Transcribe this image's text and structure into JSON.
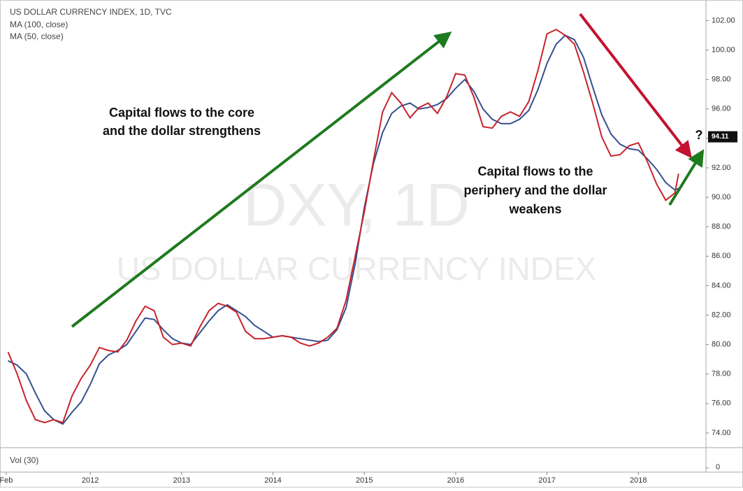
{
  "chart_data": {
    "type": "line",
    "title": "US DOLLAR CURRENCY INDEX, 1D, TVC",
    "watermark": [
      "DXY, 1D",
      "US DOLLAR CURRENCY INDEX"
    ],
    "x": [
      2011.1,
      2011.2,
      2011.3,
      2011.4,
      2011.5,
      2011.6,
      2011.7,
      2011.8,
      2011.9,
      2012.0,
      2012.1,
      2012.2,
      2012.3,
      2012.4,
      2012.5,
      2012.6,
      2012.7,
      2012.8,
      2012.9,
      2013.0,
      2013.1,
      2013.2,
      2013.3,
      2013.4,
      2013.5,
      2013.6,
      2013.7,
      2013.8,
      2013.9,
      2014.0,
      2014.1,
      2014.2,
      2014.3,
      2014.4,
      2014.5,
      2014.6,
      2014.7,
      2014.8,
      2014.9,
      2015.0,
      2015.1,
      2015.2,
      2015.3,
      2015.4,
      2015.5,
      2015.6,
      2015.7,
      2015.8,
      2015.9,
      2016.0,
      2016.1,
      2016.2,
      2016.3,
      2016.4,
      2016.5,
      2016.6,
      2016.7,
      2016.8,
      2016.9,
      2017.0,
      2017.1,
      2017.2,
      2017.3,
      2017.4,
      2017.5,
      2017.6,
      2017.7,
      2017.8,
      2017.9,
      2018.0,
      2018.1,
      2018.2,
      2018.3,
      2018.4,
      2018.44
    ],
    "series": [
      {
        "name": "MA (100, close)",
        "color": "#34508f",
        "values": [
          78.9,
          78.6,
          78.0,
          76.7,
          75.5,
          74.9,
          74.6,
          75.4,
          76.1,
          77.3,
          78.7,
          79.3,
          79.6,
          80.0,
          80.9,
          81.8,
          81.7,
          81.0,
          80.4,
          80.1,
          80.0,
          80.8,
          81.6,
          82.3,
          82.7,
          82.3,
          81.9,
          81.3,
          80.9,
          80.5,
          80.6,
          80.5,
          80.4,
          80.3,
          80.2,
          80.3,
          81.0,
          82.5,
          85.5,
          89.3,
          92.3,
          94.4,
          95.7,
          96.2,
          96.4,
          96.0,
          96.1,
          96.3,
          96.7,
          97.4,
          98.0,
          97.2,
          96.0,
          95.3,
          95.0,
          95.0,
          95.3,
          95.9,
          97.3,
          99.1,
          100.4,
          101.0,
          100.7,
          99.5,
          97.5,
          95.6,
          94.3,
          93.6,
          93.3,
          93.2,
          92.6,
          91.9,
          91.0,
          90.5,
          90.6
        ]
      },
      {
        "name": "MA (50, close)",
        "color": "#c8232c",
        "values": [
          79.5,
          78.0,
          76.2,
          74.9,
          74.7,
          74.9,
          74.7,
          76.5,
          77.7,
          78.6,
          79.8,
          79.6,
          79.5,
          80.3,
          81.6,
          82.6,
          82.3,
          80.5,
          80.0,
          80.1,
          79.9,
          81.2,
          82.3,
          82.8,
          82.6,
          82.2,
          80.9,
          80.4,
          80.4,
          80.5,
          80.6,
          80.5,
          80.1,
          79.9,
          80.1,
          80.5,
          81.1,
          83.0,
          86.0,
          89.0,
          92.5,
          95.8,
          97.1,
          96.4,
          95.4,
          96.1,
          96.4,
          95.7,
          96.8,
          98.4,
          98.3,
          96.8,
          94.8,
          94.7,
          95.5,
          95.8,
          95.5,
          96.5,
          98.6,
          101.1,
          101.4,
          101.0,
          100.4,
          98.5,
          96.4,
          94.1,
          92.8,
          92.9,
          93.5,
          93.7,
          92.4,
          90.9,
          89.8,
          90.3,
          91.6
        ]
      }
    ],
    "xlim": [
      2011.05,
      2018.74
    ],
    "xticks": [
      {
        "value": 2011.08,
        "label": "Feb"
      },
      2012,
      2013,
      2014,
      2015,
      2016,
      2017,
      2018
    ],
    "ylim": [
      73.0,
      103.4
    ],
    "yticks": [
      {
        "value": 74,
        "label": "74.00"
      },
      {
        "value": 76,
        "label": "76.00"
      },
      {
        "value": 78,
        "label": "78.00"
      },
      {
        "value": 80,
        "label": "80.00"
      },
      {
        "value": 82,
        "label": "82.00"
      },
      {
        "value": 84,
        "label": "84.00"
      },
      {
        "value": 86,
        "label": "86.00"
      },
      {
        "value": 88,
        "label": "88.00"
      },
      {
        "value": 90,
        "label": "90.00"
      },
      {
        "value": 92,
        "label": "92.00"
      },
      {
        "value": 94,
        "label": "94.00"
      },
      {
        "value": 96,
        "label": "96.00"
      },
      {
        "value": 98,
        "label": "98.00"
      },
      {
        "value": 100,
        "label": "100.00"
      },
      {
        "value": 102,
        "label": "102.00"
      }
    ],
    "last_price": 94.11,
    "grid": false,
    "annotations": [
      {
        "lines": [
          "Capital flows to the core",
          "and the dollar strengthens"
        ]
      },
      {
        "lines": [
          "Capital flows to the",
          "periphery and the dollar",
          "weakens"
        ]
      },
      {
        "lines": [
          "?"
        ]
      }
    ],
    "vol_pane": {
      "label": "Vol (30)",
      "yticks": [
        0
      ]
    }
  }
}
